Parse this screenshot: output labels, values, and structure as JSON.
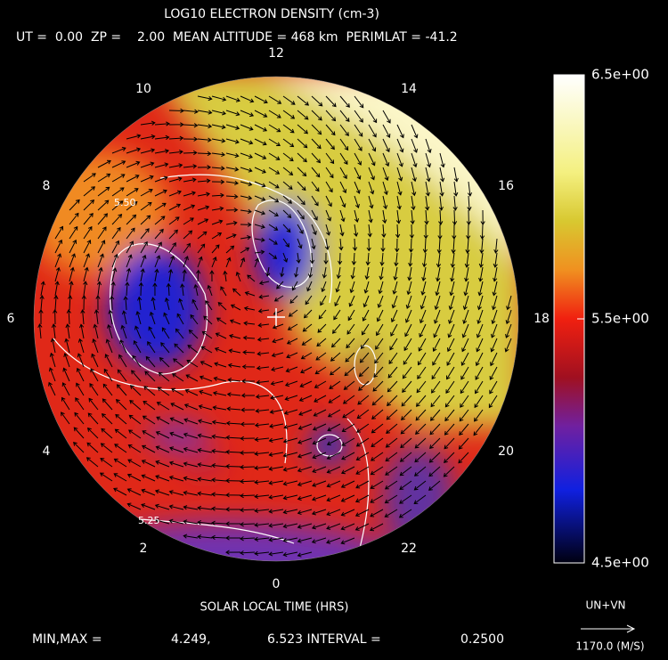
{
  "chart_data": {
    "type": "polar-contour",
    "title": "LOG10 ELECTRON DENSITY (cm-3)",
    "subtitle": "UT =  0.00  ZP =    2.00  MEAN ALTITUDE = 468 km  PERIMLAT = -41.2",
    "hour_ticks": [
      0,
      2,
      4,
      6,
      8,
      10,
      12,
      14,
      16,
      18,
      20,
      22
    ],
    "xlabel": "SOLAR LOCAL TIME (HRS)",
    "colorbar": {
      "lim": [
        4.5,
        6.5
      ],
      "ticks": [
        {
          "value": 6.5,
          "label": "6.5e+00"
        },
        {
          "value": 5.5,
          "label": "5.5e+00"
        },
        {
          "value": 4.5,
          "label": "4.5e+00"
        }
      ]
    },
    "contour_labels": [
      "5.50",
      "5.25"
    ],
    "footer": {
      "min_max_label": "MIN,MAX =",
      "min": "4.249,",
      "max_interval": "6.523 INTERVAL =",
      "interval": "0.2500"
    },
    "vector_label": "UN+VN",
    "vector_scale": "1170.0 (M/S)"
  }
}
